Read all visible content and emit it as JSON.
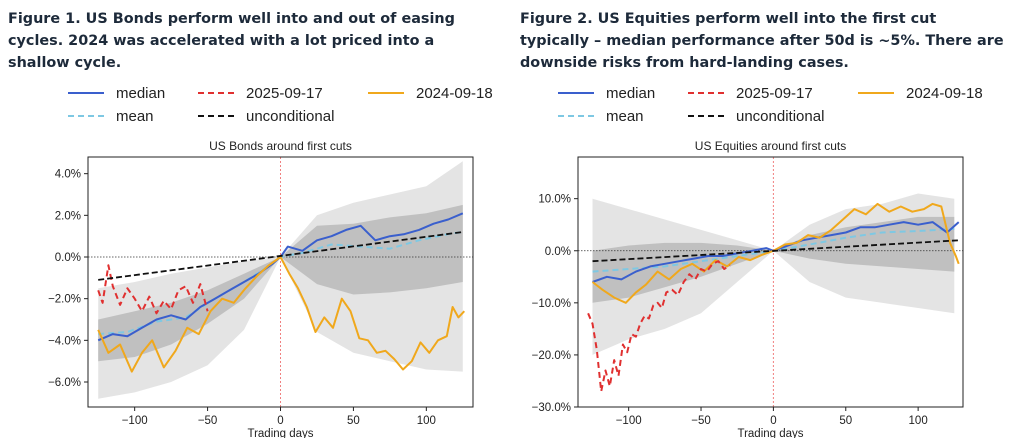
{
  "captions": {
    "figure1": "Figure 1. US Bonds perform well into and out of easing cycles. 2024 was accelerated with a lot priced into a shallow cycle.",
    "figure2": "Figure 2. US Equities perform well into the first cut typically – median performance after 50d is ~5%. There are downside risks from hard-landing cases."
  },
  "colors": {
    "median": "#3a5fcd",
    "mean": "#7ec8e3",
    "d2025": "#e03030",
    "d2024": "#f0a81c",
    "unconditional": "#111111",
    "band_outer": "#e4e4e4",
    "band_inner": "#b4b4b4",
    "cut_line": "#f08080"
  },
  "chart_data": [
    {
      "type": "line",
      "title": "US Bonds around first cuts",
      "xlabel": "Trading days",
      "ylabel": "",
      "xlim": [
        -132,
        132
      ],
      "ylim": [
        -7.2,
        4.8
      ],
      "xticks": [
        -100,
        -50,
        0,
        50,
        100
      ],
      "xtick_labels": [
        "−100",
        "−50",
        "0",
        "50",
        "100"
      ],
      "yticks": [
        4,
        2,
        0,
        -2,
        -4,
        -6
      ],
      "ytick_labels": [
        "4.0%",
        "2.0%",
        "0.0%",
        "−2.0%",
        "−4.0%",
        "−6.0%"
      ],
      "legend": [
        "median",
        "2025-09-17",
        "2024-09-18",
        "mean",
        "unconditional"
      ],
      "series": [
        {
          "name": "median",
          "style": "solid",
          "x": [
            -125,
            -115,
            -105,
            -95,
            -85,
            -75,
            -65,
            -55,
            -45,
            -35,
            -25,
            -15,
            -5,
            0,
            5,
            15,
            25,
            35,
            45,
            55,
            65,
            75,
            85,
            95,
            105,
            115,
            125
          ],
          "values": [
            -4.0,
            -3.7,
            -3.8,
            -3.4,
            -3.0,
            -2.8,
            -3.0,
            -2.4,
            -2.0,
            -1.6,
            -1.2,
            -0.8,
            -0.3,
            0.0,
            0.5,
            0.3,
            0.8,
            1.0,
            1.3,
            1.5,
            0.8,
            1.0,
            1.1,
            1.3,
            1.6,
            1.8,
            2.1
          ]
        },
        {
          "name": "mean",
          "style": "dashed",
          "x": [
            -125,
            -105,
            -85,
            -65,
            -45,
            -25,
            -5,
            0,
            15,
            35,
            55,
            75,
            95,
            115,
            125
          ],
          "values": [
            -3.7,
            -3.6,
            -3.1,
            -2.9,
            -2.0,
            -1.2,
            -0.3,
            0.0,
            0.2,
            0.6,
            0.5,
            0.4,
            0.8,
            1.1,
            1.2
          ]
        },
        {
          "name": "2025-09-17",
          "style": "dashed",
          "x": [
            -125,
            -122,
            -118,
            -115,
            -110,
            -105,
            -100,
            -95,
            -90,
            -85,
            -80,
            -75,
            -70,
            -65,
            -60,
            -55,
            -50
          ],
          "values": [
            -1.6,
            -2.2,
            -0.4,
            -1.4,
            -2.3,
            -1.5,
            -2.0,
            -2.6,
            -1.9,
            -2.7,
            -2.1,
            -2.5,
            -1.6,
            -1.4,
            -2.2,
            -1.3,
            -2.6
          ]
        },
        {
          "name": "2024-09-18",
          "style": "solid",
          "x": [
            -125,
            -118,
            -110,
            -102,
            -95,
            -88,
            -80,
            -72,
            -64,
            -56,
            -48,
            -40,
            -32,
            -24,
            -16,
            -8,
            0,
            6,
            12,
            18,
            24,
            30,
            36,
            42,
            48,
            54,
            60,
            66,
            72,
            78,
            84,
            90,
            96,
            102,
            108,
            114,
            118,
            122,
            126
          ],
          "values": [
            -3.5,
            -4.6,
            -4.2,
            -5.5,
            -4.6,
            -4.0,
            -5.3,
            -4.5,
            -3.4,
            -3.7,
            -2.6,
            -2.0,
            -2.2,
            -1.5,
            -0.9,
            -0.4,
            0.0,
            -0.8,
            -1.5,
            -2.4,
            -3.6,
            -2.9,
            -3.4,
            -2.0,
            -2.6,
            -3.9,
            -4.0,
            -4.6,
            -4.5,
            -4.9,
            -5.4,
            -5.0,
            -4.1,
            -4.6,
            -4.0,
            -3.8,
            -2.4,
            -2.9,
            -2.6
          ]
        },
        {
          "name": "unconditional",
          "style": "dashed",
          "x": [
            -125,
            125
          ],
          "values": [
            -1.1,
            1.2
          ]
        }
      ],
      "bands": {
        "x": [
          -125,
          -100,
          -75,
          -50,
          -25,
          0,
          25,
          50,
          75,
          100,
          125
        ],
        "outer_low": [
          -6.8,
          -6.5,
          -6.0,
          -5.2,
          -3.5,
          0.0,
          -3.6,
          -4.6,
          -5.0,
          -5.4,
          -5.5
        ],
        "outer_high": [
          -1.5,
          -1.2,
          -0.8,
          -0.5,
          -0.2,
          0.0,
          2.0,
          2.6,
          3.0,
          3.4,
          4.6
        ],
        "inner_low": [
          -5.0,
          -4.8,
          -4.2,
          -3.2,
          -2.0,
          0.0,
          -1.3,
          -1.8,
          -1.7,
          -1.5,
          -1.2
        ],
        "inner_high": [
          -3.0,
          -2.6,
          -2.2,
          -1.6,
          -0.8,
          0.0,
          1.5,
          1.6,
          1.9,
          2.1,
          2.5
        ]
      }
    },
    {
      "type": "line",
      "title": "US Equities around first cuts",
      "xlabel": "Trading days",
      "ylabel": "",
      "xlim": [
        -135,
        131
      ],
      "ylim": [
        -30,
        18
      ],
      "xticks": [
        -100,
        -50,
        0,
        50,
        100
      ],
      "xtick_labels": [
        "−100",
        "−50",
        "0",
        "50",
        "100"
      ],
      "yticks": [
        10,
        0,
        -10,
        -20,
        -30
      ],
      "ytick_labels": [
        "10.0%",
        "0.0%",
        "−10.0%",
        "−20.0%",
        "−30.0%"
      ],
      "legend": [
        "median",
        "2025-09-17",
        "2024-09-18",
        "mean",
        "unconditional"
      ],
      "series": [
        {
          "name": "median",
          "style": "solid",
          "x": [
            -125,
            -115,
            -105,
            -95,
            -85,
            -75,
            -65,
            -55,
            -45,
            -35,
            -25,
            -15,
            -5,
            0,
            10,
            20,
            30,
            40,
            50,
            60,
            70,
            80,
            90,
            100,
            110,
            120,
            128
          ],
          "values": [
            -6.0,
            -5.0,
            -5.5,
            -4.0,
            -3.0,
            -2.5,
            -2.0,
            -1.5,
            -1.0,
            -1.0,
            -0.5,
            0.0,
            0.5,
            0.0,
            1.0,
            2.0,
            2.5,
            3.0,
            3.5,
            4.5,
            4.5,
            5.0,
            5.5,
            5.0,
            5.5,
            3.5,
            5.5
          ]
        },
        {
          "name": "mean",
          "style": "dashed",
          "x": [
            -125,
            -100,
            -75,
            -50,
            -25,
            0,
            25,
            50,
            75,
            100,
            125
          ],
          "values": [
            -4.0,
            -3.5,
            -3.0,
            -2.0,
            -1.0,
            0.0,
            1.2,
            2.5,
            3.5,
            3.8,
            4.2
          ]
        },
        {
          "name": "2025-09-17",
          "style": "dashed",
          "x": [
            -128,
            -125,
            -122,
            -119,
            -116,
            -113,
            -110,
            -107,
            -104,
            -101,
            -98,
            -95,
            -92,
            -89,
            -86,
            -83,
            -80,
            -77,
            -74,
            -70,
            -66,
            -62,
            -58,
            -54,
            -50,
            -46,
            -42,
            -38,
            -34,
            -30
          ],
          "values": [
            -12.0,
            -14.0,
            -19.0,
            -27.0,
            -23.0,
            -26.0,
            -21.0,
            -24.0,
            -18.0,
            -19.5,
            -16.0,
            -16.5,
            -14.0,
            -12.5,
            -13.0,
            -10.5,
            -10.0,
            -11.0,
            -8.0,
            -7.5,
            -8.5,
            -6.0,
            -4.5,
            -5.5,
            -3.5,
            -4.0,
            -2.5,
            -2.0,
            -3.5,
            -2.8
          ]
        },
        {
          "name": "2024-09-18",
          "style": "solid",
          "x": [
            -125,
            -118,
            -110,
            -102,
            -95,
            -88,
            -80,
            -72,
            -64,
            -56,
            -48,
            -40,
            -32,
            -24,
            -16,
            -8,
            0,
            8,
            16,
            24,
            32,
            40,
            48,
            56,
            64,
            72,
            80,
            88,
            96,
            104,
            110,
            116,
            122,
            126,
            128
          ],
          "values": [
            -6.0,
            -7.5,
            -9.0,
            -10.0,
            -8.0,
            -6.5,
            -4.0,
            -5.5,
            -3.5,
            -2.5,
            -4.0,
            -1.8,
            -3.0,
            -1.2,
            -1.8,
            -0.8,
            0.0,
            1.2,
            1.5,
            3.0,
            2.5,
            4.0,
            6.0,
            8.0,
            7.0,
            9.0,
            7.5,
            8.5,
            7.5,
            8.0,
            9.0,
            8.5,
            1.5,
            -1.0,
            -2.5
          ]
        },
        {
          "name": "unconditional",
          "style": "dashed",
          "x": [
            -125,
            128
          ],
          "values": [
            -2.0,
            2.0
          ]
        }
      ],
      "bands": {
        "x": [
          -125,
          -100,
          -75,
          -50,
          -25,
          0,
          25,
          50,
          75,
          100,
          125
        ],
        "outer_low": [
          -20.0,
          -17.0,
          -15.0,
          -12.0,
          -6.0,
          0.0,
          -6.0,
          -9.0,
          -10.0,
          -11.0,
          -12.0
        ],
        "outer_high": [
          10.0,
          8.0,
          6.0,
          4.0,
          2.0,
          0.0,
          5.0,
          8.0,
          9.0,
          11.0,
          10.0
        ],
        "inner_low": [
          -10.0,
          -9.0,
          -7.0,
          -5.0,
          -2.5,
          0.0,
          -1.5,
          -2.5,
          -3.0,
          -3.5,
          -4.0
        ],
        "inner_high": [
          0.0,
          1.0,
          1.5,
          1.5,
          1.0,
          0.0,
          3.0,
          4.5,
          5.5,
          6.5,
          6.5
        ]
      }
    }
  ]
}
